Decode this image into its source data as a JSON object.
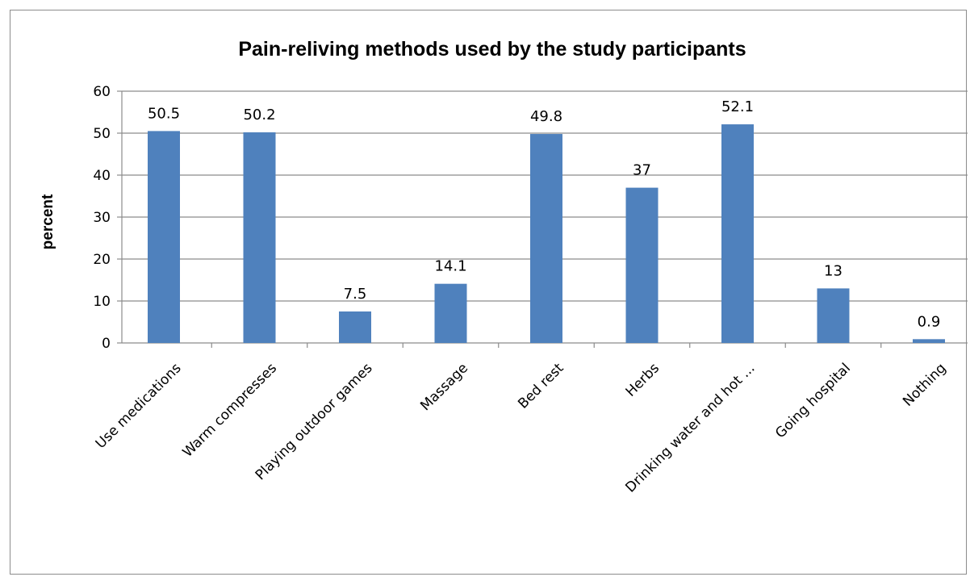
{
  "chart_data": {
    "type": "bar",
    "title": "Pain-reliving methods used by the study participants",
    "ylabel": "percent",
    "xlabel": "",
    "ylim": [
      0,
      60
    ],
    "yticks": [
      0,
      10,
      20,
      30,
      40,
      50,
      60
    ],
    "grid": true,
    "legend": "none",
    "bar_color": "#4f81bd",
    "categories": [
      "Use medications",
      "Warm compresses",
      "Playing outdoor games",
      "Massage",
      "Bed rest",
      "Herbs",
      "Drinking water and hot ...",
      "Going hospital",
      "Nothing"
    ],
    "values": [
      50.5,
      50.2,
      7.5,
      14.1,
      49.8,
      37,
      52.1,
      13,
      0.9
    ],
    "data_labels": [
      "50.5",
      "50.2",
      "7.5",
      "14.1",
      "49.8",
      "37",
      "52.1",
      "13",
      "0.9"
    ]
  }
}
